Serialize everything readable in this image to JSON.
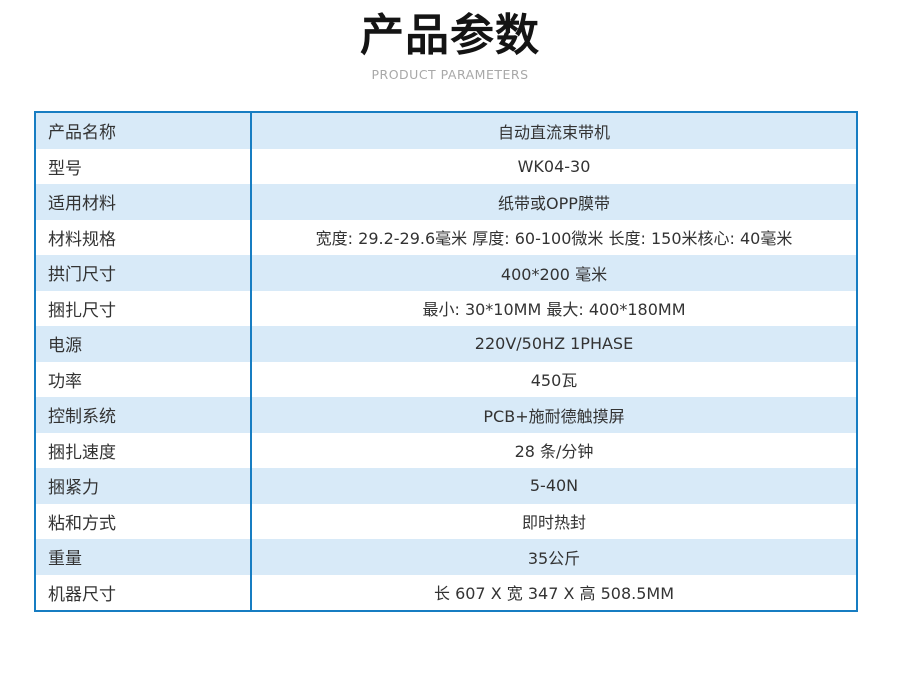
{
  "header": {
    "title": "产品参数",
    "subtitle": "PRODUCT PARAMETERS"
  },
  "colors": {
    "table_border": "#177dc2",
    "row_alt_bg": "#d8eaf8",
    "row_bg": "#ffffff",
    "subtitle_text": "#a8a8a8",
    "body_text": "#333333",
    "title_text": "#141414"
  },
  "table": {
    "rows": [
      {
        "label": "产品名称",
        "value": "自动直流束带机"
      },
      {
        "label": "型号",
        "value": "WK04-30"
      },
      {
        "label": "适用材料",
        "value": "纸带或OPP膜带"
      },
      {
        "label": "材料规格",
        "value": "宽度: 29.2-29.6毫米 厚度: 60-100微米 长度: 150米核心: 40毫米"
      },
      {
        "label": "拱门尺寸",
        "value": "400*200 毫米"
      },
      {
        "label": "捆扎尺寸",
        "value": "最小: 30*10MM 最大: 400*180MM"
      },
      {
        "label": "电源",
        "value": "220V/50HZ 1PHASE"
      },
      {
        "label": "功率",
        "value": "450瓦"
      },
      {
        "label": "控制系统",
        "value": "PCB+施耐德触摸屏"
      },
      {
        "label": "捆扎速度",
        "value": "28 条/分钟"
      },
      {
        "label": "捆紧力",
        "value": "5-40N"
      },
      {
        "label": "粘和方式",
        "value": "即时热封"
      },
      {
        "label": "重量",
        "value": "35公斤"
      },
      {
        "label": "机器尺寸",
        "value": "长 607 X 宽 347 X 高 508.5MM"
      }
    ]
  }
}
